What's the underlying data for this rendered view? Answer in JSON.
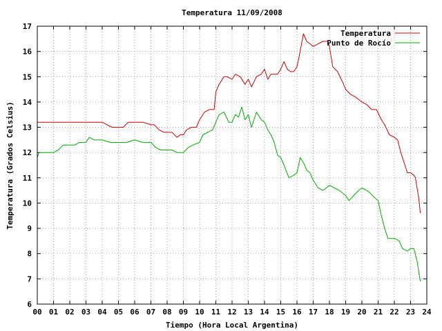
{
  "chart_data": {
    "type": "line",
    "title": "Temperatura 11/09/2008",
    "xlabel": "Tiempo (Hora Local Argentina)",
    "ylabel": "Temperatura (Grados Celsius)",
    "xlim": [
      0,
      24
    ],
    "ylim": [
      6,
      17
    ],
    "xticks": [
      "00",
      "01",
      "02",
      "03",
      "04",
      "05",
      "06",
      "07",
      "08",
      "09",
      "10",
      "11",
      "12",
      "13",
      "14",
      "15",
      "16",
      "17",
      "18",
      "19",
      "20",
      "21",
      "22",
      "23",
      "24"
    ],
    "yticks": [
      "6",
      "7",
      "8",
      "9",
      "10",
      "11",
      "12",
      "13",
      "14",
      "15",
      "16",
      "17"
    ],
    "grid": true,
    "legend_position": "top-right",
    "series": [
      {
        "name": "Temperatura",
        "color": "#cc0000",
        "x": [
          0,
          0.5,
          1,
          1.5,
          2,
          2.5,
          3,
          3.5,
          4,
          4.3,
          4.6,
          5,
          5.3,
          5.6,
          6,
          6.5,
          7,
          7.2,
          7.5,
          7.8,
          8,
          8.3,
          8.6,
          8.8,
          9,
          9.2,
          9.5,
          9.8,
          10,
          10.3,
          10.6,
          10.9,
          11,
          11.2,
          11.5,
          11.7,
          12,
          12.2,
          12.5,
          12.8,
          13,
          13.2,
          13.5,
          13.8,
          14,
          14.2,
          14.4,
          14.6,
          14.8,
          15,
          15.2,
          15.4,
          15.6,
          15.8,
          16,
          16.1,
          16.4,
          16.6,
          16.8,
          17,
          17.3,
          17.6,
          17.9,
          18,
          18.2,
          18.5,
          18.8,
          19,
          19.3,
          19.6,
          20,
          20.3,
          20.6,
          20.9,
          21.2,
          21.4,
          21.7,
          22,
          22.2,
          22.4,
          22.6,
          22.8,
          23,
          23.2,
          23.3,
          23.5,
          23.6
        ],
        "y": [
          13.2,
          13.2,
          13.2,
          13.2,
          13.2,
          13.2,
          13.2,
          13.2,
          13.2,
          13.1,
          13,
          13,
          13,
          13.2,
          13.2,
          13.2,
          13.1,
          13.1,
          12.9,
          12.8,
          12.8,
          12.8,
          12.6,
          12.7,
          12.7,
          12.9,
          13,
          13,
          13.3,
          13.6,
          13.7,
          13.7,
          14.4,
          14.7,
          15,
          15,
          14.9,
          15.1,
          15,
          14.7,
          14.9,
          14.6,
          15,
          15.1,
          15.3,
          14.9,
          15.1,
          15.1,
          15.1,
          15.3,
          15.6,
          15.3,
          15.2,
          15.2,
          15.4,
          15.7,
          16.7,
          16.4,
          16.3,
          16.2,
          16.3,
          16.4,
          16.4,
          16.2,
          15.4,
          15.2,
          14.8,
          14.5,
          14.3,
          14.2,
          14,
          13.9,
          13.7,
          13.7,
          13.3,
          13.1,
          12.7,
          12.6,
          12.5,
          12,
          11.6,
          11.2,
          11.2,
          11.1,
          11,
          10.2,
          9.6
        ]
      },
      {
        "name": "Punto de Rocío",
        "color": "#00aa00",
        "x": [
          0,
          0.1,
          0.5,
          1,
          1.3,
          1.6,
          2,
          2.3,
          2.6,
          3,
          3.2,
          3.5,
          4,
          4.5,
          5,
          5.5,
          6,
          6.5,
          7,
          7.3,
          7.6,
          8,
          8.3,
          8.6,
          9,
          9.3,
          9.6,
          10,
          10.2,
          10.5,
          10.8,
          11,
          11.2,
          11.5,
          11.8,
          12,
          12.2,
          12.4,
          12.6,
          12.8,
          13,
          13.2,
          13.5,
          13.8,
          14,
          14.2,
          14.4,
          14.6,
          14.8,
          15,
          15.2,
          15.5,
          15.8,
          16,
          16.2,
          16.4,
          16.6,
          16.8,
          17,
          17.3,
          17.6,
          18,
          18.3,
          18.6,
          19,
          19.2,
          19.5,
          19.8,
          20,
          20.3,
          20.5,
          20.8,
          21,
          21.2,
          21.4,
          21.6,
          21.8,
          22,
          22.3,
          22.5,
          22.8,
          23,
          23.2,
          23.4,
          23.6
        ],
        "y": [
          11.8,
          12,
          12,
          12,
          12.1,
          12.3,
          12.3,
          12.3,
          12.4,
          12.4,
          12.6,
          12.5,
          12.5,
          12.4,
          12.4,
          12.4,
          12.5,
          12.4,
          12.4,
          12.2,
          12.1,
          12.1,
          12.1,
          12,
          12,
          12.2,
          12.3,
          12.4,
          12.7,
          12.8,
          12.9,
          13.2,
          13.5,
          13.6,
          13.2,
          13.2,
          13.5,
          13.4,
          13.8,
          13.3,
          13.5,
          13,
          13.6,
          13.3,
          13.2,
          12.9,
          12.7,
          12.4,
          11.9,
          11.8,
          11.5,
          11.0,
          11.1,
          11.2,
          11.8,
          11.6,
          11.3,
          11.2,
          10.9,
          10.6,
          10.5,
          10.7,
          10.6,
          10.5,
          10.3,
          10.1,
          10.3,
          10.5,
          10.6,
          10.5,
          10.4,
          10.2,
          10.1,
          9.5,
          9.0,
          8.6,
          8.6,
          8.6,
          8.5,
          8.2,
          8.1,
          8.2,
          8.2,
          7.7,
          6.9
        ]
      }
    ]
  }
}
